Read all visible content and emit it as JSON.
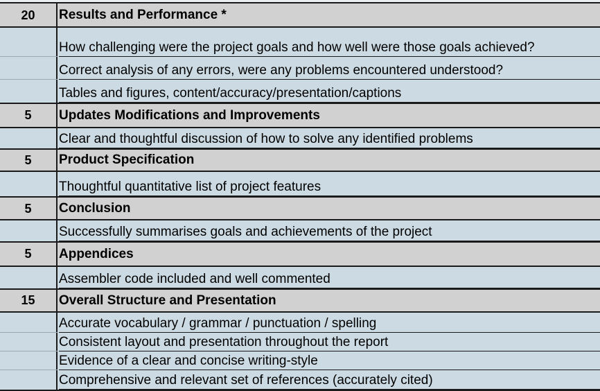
{
  "sections": [
    {
      "points": "20",
      "title": "Results and Performance *",
      "items": [
        "How challenging were the project goals and how well were those goals achieved?",
        "Correct analysis of any errors, were any problems encountered understood?",
        "Tables and figures, content/accuracy/presentation/captions"
      ]
    },
    {
      "points": "5",
      "title": "Updates Modifications and Improvements",
      "items": [
        "Clear and thoughtful discussion of how to solve any identified problems"
      ]
    },
    {
      "points": "5",
      "title": "Product Specification",
      "items": [
        "Thoughtful quantitative list of project features"
      ]
    },
    {
      "points": "5",
      "title": "Conclusion",
      "items": [
        "Successfully summarises goals and achievements of the project"
      ]
    },
    {
      "points": "5",
      "title": "Appendices",
      "items": [
        "Assembler code included and well commented"
      ]
    },
    {
      "points": "15",
      "title": "Overall Structure and Presentation",
      "items": [
        "Accurate vocabulary / grammar / punctuation / spelling",
        "Consistent layout and presentation throughout the report",
        "Evidence of a clear and concise writing-style",
        "Comprehensive and relevant set of references (accurately cited)"
      ]
    }
  ]
}
